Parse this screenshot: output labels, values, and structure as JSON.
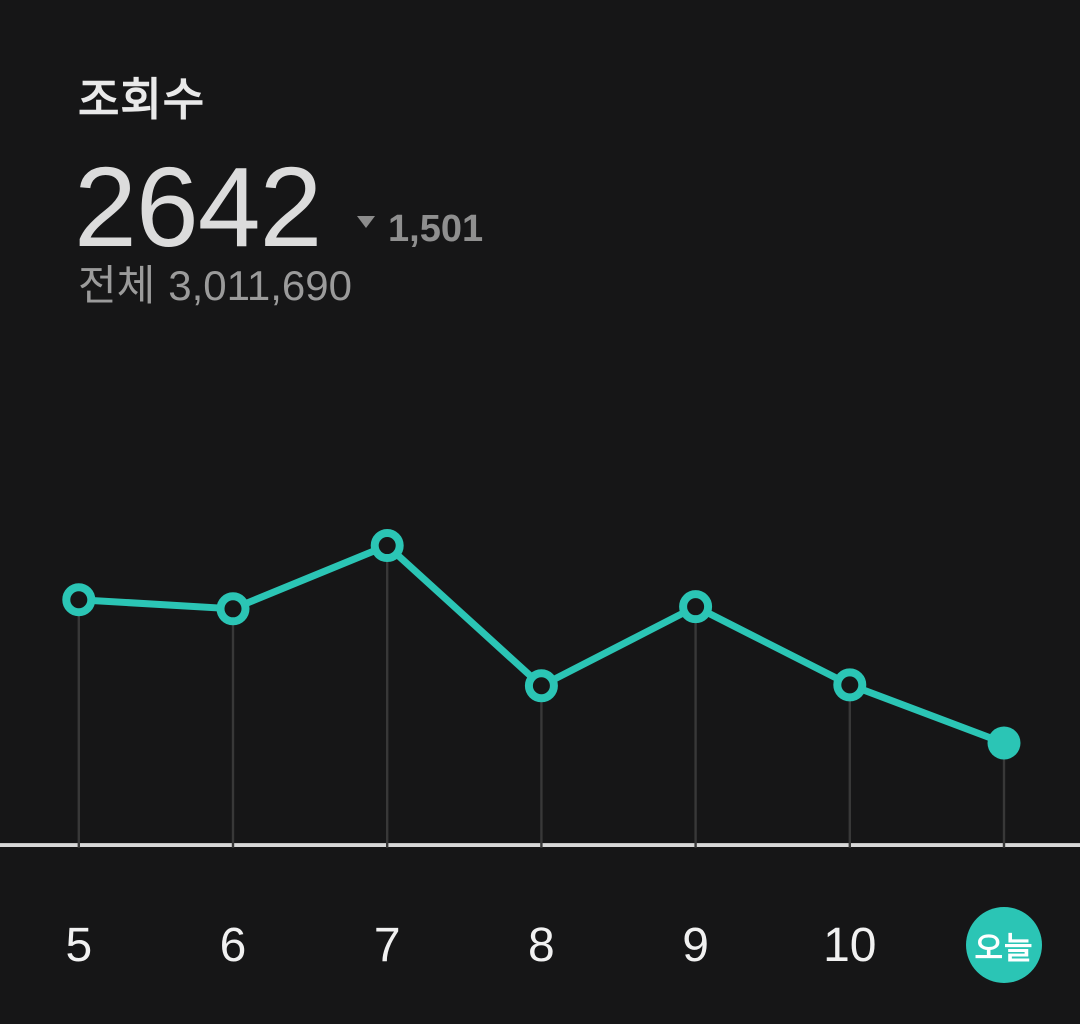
{
  "header": {
    "title": "조회수",
    "current_value": "2642",
    "delta_direction": "down",
    "delta_value": "1,501",
    "total_prefix": "전체",
    "total_value": "3,011,690"
  },
  "chart_data": {
    "type": "line",
    "title": "조회수",
    "categories": [
      "5",
      "6",
      "7",
      "8",
      "9",
      "10",
      "오늘"
    ],
    "values": [
      6345,
      6110,
      7745,
      4120,
      6165,
      4143,
      2642
    ],
    "series": [
      {
        "name": "daily_views",
        "values": [
          6345,
          6110,
          7745,
          4120,
          6165,
          4143,
          2642
        ]
      }
    ],
    "x_labels": [
      "5",
      "6",
      "7",
      "8",
      "9",
      "10"
    ],
    "today_label": "오늘",
    "today_value": 2642,
    "delta_from_previous_day": -1501,
    "ylim": [
      0,
      9000
    ],
    "xlabel": "",
    "ylabel": "",
    "legend": "none",
    "grid": "vertical-point-guides-only",
    "marker_style": "open-circle",
    "selected_point": "오늘"
  },
  "colors": {
    "accent_teal": "#2bc5b5",
    "background": "#161617",
    "axis_line": "#d8d8d8",
    "guide_line": "#383838",
    "primary_text": "#dcdcdc",
    "muted_text": "#8f8f8f",
    "label_text": "#f1f1f1"
  }
}
